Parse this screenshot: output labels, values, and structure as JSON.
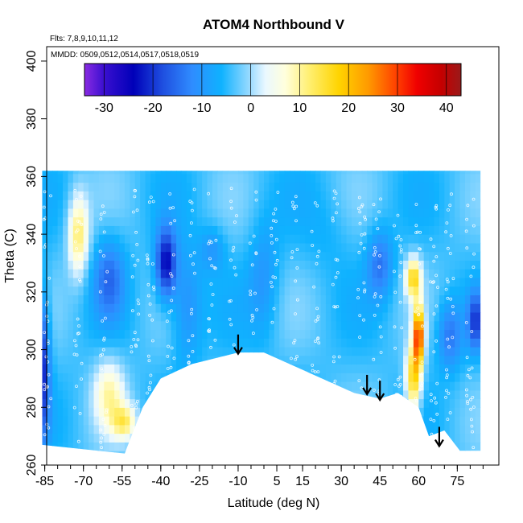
{
  "chart_data": {
    "type": "heatmap",
    "title": "ATOM4 Northbound V",
    "xlabel": "Latitude (deg N)",
    "ylabel": "Theta (C)",
    "xlim": [
      -88,
      88
    ],
    "ylim": [
      260,
      405
    ],
    "x_ticks": [
      -85,
      -70,
      -55,
      -40,
      -25,
      -10,
      5,
      15,
      30,
      45,
      60,
      75
    ],
    "y_ticks": [
      260,
      280,
      300,
      320,
      340,
      360,
      380,
      400
    ],
    "flights_note": "Flts: 7,8,9,10,11,12",
    "dates_note": "MMDD: 0509,0512,0514,0517,0518,0519",
    "colorbar": {
      "ticks": [
        -30,
        -20,
        -10,
        0,
        10,
        20,
        30,
        40
      ],
      "range": [
        -34,
        43
      ],
      "stops": [
        {
          "v": -34,
          "c": "#8a2be2"
        },
        {
          "v": -30,
          "c": "#3a0fd0"
        },
        {
          "v": -24,
          "c": "#0000b8"
        },
        {
          "v": -18,
          "c": "#1f4fe0"
        },
        {
          "v": -12,
          "c": "#2f8cff"
        },
        {
          "v": -6,
          "c": "#0fb2ff"
        },
        {
          "v": 0,
          "c": "#9fdcff"
        },
        {
          "v": 3,
          "c": "#eaf8ff"
        },
        {
          "v": 7,
          "c": "#ffffdd"
        },
        {
          "v": 12,
          "c": "#ffef70"
        },
        {
          "v": 18,
          "c": "#ffd400"
        },
        {
          "v": 24,
          "c": "#ff9a00"
        },
        {
          "v": 30,
          "c": "#ff3c00"
        },
        {
          "v": 34,
          "c": "#f00000"
        },
        {
          "v": 39,
          "c": "#c40000"
        },
        {
          "v": 43,
          "c": "#9a1a1a"
        }
      ]
    },
    "field": {
      "lat_range": [
        -86,
        84
      ],
      "theta_top": 362,
      "background_value": -4,
      "lower_boundary": [
        {
          "lat": -86,
          "theta": 267
        },
        {
          "lat": -54,
          "theta": 264
        },
        {
          "lat": -47,
          "theta": 280
        },
        {
          "lat": -40,
          "theta": 290
        },
        {
          "lat": -28,
          "theta": 295
        },
        {
          "lat": -10,
          "theta": 299
        },
        {
          "lat": 0,
          "theta": 299
        },
        {
          "lat": 15,
          "theta": 293
        },
        {
          "lat": 35,
          "theta": 285
        },
        {
          "lat": 45,
          "theta": 283
        },
        {
          "lat": 52,
          "theta": 285
        },
        {
          "lat": 60,
          "theta": 280
        },
        {
          "lat": 64,
          "theta": 270
        },
        {
          "lat": 70,
          "theta": 272
        },
        {
          "lat": 76,
          "theta": 265
        },
        {
          "lat": 84,
          "theta": 265
        }
      ],
      "features": [
        {
          "lat": -86,
          "theta": 295,
          "v": -22,
          "dlat": 3,
          "dtheta": 25
        },
        {
          "lat": -72,
          "theta": 340,
          "v": 12,
          "dlat": 4,
          "dtheta": 14
        },
        {
          "lat": -60,
          "theta": 285,
          "v": 8,
          "dlat": 6,
          "dtheta": 12
        },
        {
          "lat": -54,
          "theta": 275,
          "v": 10,
          "dlat": 5,
          "dtheta": 6
        },
        {
          "lat": -38,
          "theta": 330,
          "v": -24,
          "dlat": 4,
          "dtheta": 12
        },
        {
          "lat": -60,
          "theta": 325,
          "v": -14,
          "dlat": 6,
          "dtheta": 14
        },
        {
          "lat": -30,
          "theta": 315,
          "v": -12,
          "dlat": 6,
          "dtheta": 20
        },
        {
          "lat": -20,
          "theta": 335,
          "v": -10,
          "dlat": 5,
          "dtheta": 8
        },
        {
          "lat": 0,
          "theta": 325,
          "v": -10,
          "dlat": 6,
          "dtheta": 20
        },
        {
          "lat": 25,
          "theta": 340,
          "v": -6,
          "dlat": 10,
          "dtheta": 15
        },
        {
          "lat": 45,
          "theta": 330,
          "v": -14,
          "dlat": 5,
          "dtheta": 12
        },
        {
          "lat": 60,
          "theta": 305,
          "v": 30,
          "dlat": 2,
          "dtheta": 10
        },
        {
          "lat": 58,
          "theta": 290,
          "v": 18,
          "dlat": 3,
          "dtheta": 12
        },
        {
          "lat": 58,
          "theta": 325,
          "v": 16,
          "dlat": 3,
          "dtheta": 7
        },
        {
          "lat": 72,
          "theta": 305,
          "v": -14,
          "dlat": 5,
          "dtheta": 12
        },
        {
          "lat": 82,
          "theta": 310,
          "v": -18,
          "dlat": 3,
          "dtheta": 10
        }
      ]
    },
    "arrows": [
      {
        "lat": -10,
        "theta": 298
      },
      {
        "lat": 40,
        "theta": 284
      },
      {
        "lat": 45,
        "theta": 282
      },
      {
        "lat": 68,
        "theta": 266
      }
    ]
  }
}
